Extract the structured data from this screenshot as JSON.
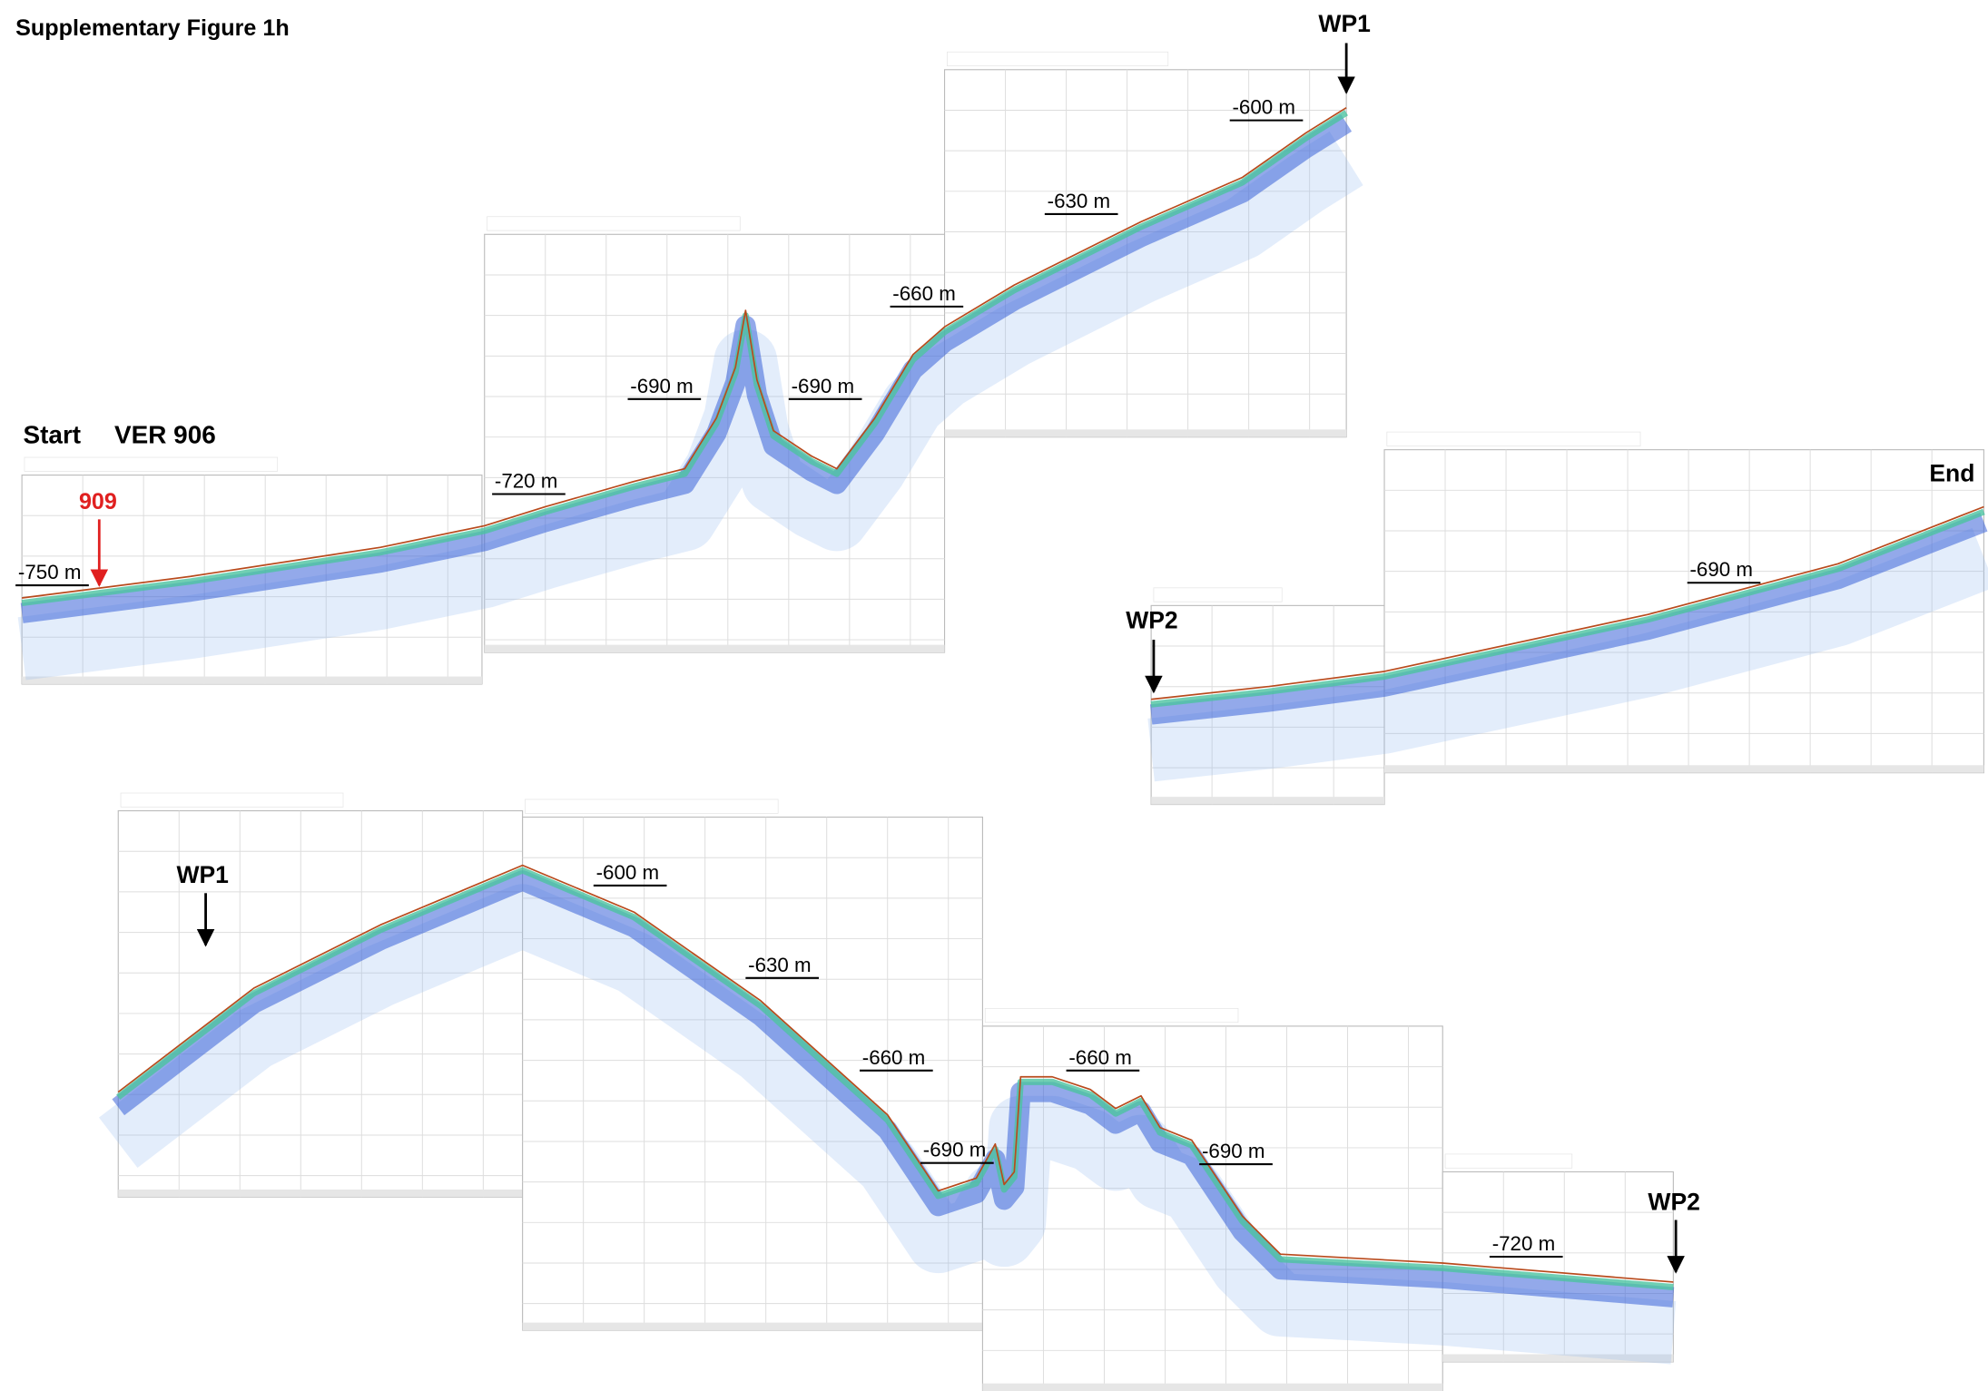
{
  "title": "Supplementary Figure 1h",
  "top_profile": {
    "start": "Start",
    "line": "VER 906",
    "marker": "909",
    "waypoint_labels": [
      "WP1",
      "WP2",
      "End"
    ],
    "depth_labels": [
      "-750 m",
      "-720 m",
      "-690 m",
      "-690 m",
      "-660 m",
      "-630 m",
      "-600 m",
      "-690 m"
    ]
  },
  "bottom_profile": {
    "waypoint_labels": [
      "WP1",
      "WP2"
    ],
    "depth_labels": [
      "-600 m",
      "-630 m",
      "-660 m",
      "-690 m",
      "-660 m",
      "-690 m",
      "-720 m"
    ]
  }
}
